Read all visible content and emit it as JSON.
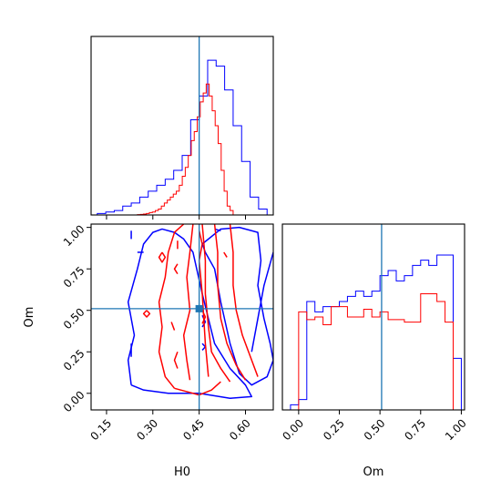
{
  "chart_data": {
    "type": "corner",
    "colors": {
      "series_a": "#0000ff",
      "series_b": "#ff0000",
      "truth": "#1f77b4"
    },
    "truth": {
      "H0": 0.45,
      "Om": 0.51
    },
    "axes": {
      "H0": {
        "label": "H0",
        "range": [
          0.1,
          0.69
        ],
        "ticks": [
          0.15,
          0.3,
          0.45,
          0.6
        ],
        "tick_labels": [
          "0.15",
          "0.30",
          "0.45",
          "0.60"
        ]
      },
      "Om": {
        "label": "Om",
        "range": [
          -0.1,
          1.02
        ],
        "ticks": [
          0.0,
          0.25,
          0.5,
          0.75,
          1.0
        ],
        "tick_labels": [
          "0.00",
          "0.25",
          "0.50",
          "0.75",
          "1.00"
        ]
      }
    },
    "panels": [
      {
        "id": "H0-marginal",
        "type": "step-histogram",
        "x": "H0",
        "bin_edges": [
          0.12,
          0.1475,
          0.175,
          0.2025,
          0.23,
          0.2575,
          0.285,
          0.3125,
          0.34,
          0.3675,
          0.395,
          0.4225,
          0.45,
          0.4775,
          0.505,
          0.5325,
          0.56,
          0.5875,
          0.615,
          0.6425,
          0.67
        ],
        "series": [
          {
            "color": "series_a",
            "counts": [
              0.5,
              1,
              1.5,
              3,
              4,
              6,
              8,
              10,
              12,
              15,
              20,
              32,
              40,
              52,
              50,
              42,
              30,
              18,
              6,
              2
            ]
          },
          {
            "color": "series_b",
            "counts_fine": [
              0.1,
              0.2,
              0.3,
              0.5,
              0.8,
              1,
              1.5,
              2,
              3,
              4,
              5,
              6,
              7,
              8,
              10,
              13,
              16,
              20,
              25,
              28,
              33,
              38,
              41,
              44,
              40,
              35,
              30,
              24,
              15,
              8,
              3,
              1.5
            ]
          }
        ],
        "fine_range": [
          0.25,
          0.56
        ],
        "ymax": 60
      },
      {
        "id": "H0-Om-contours",
        "type": "contour",
        "x": "H0",
        "y": "Om",
        "series": [
          {
            "color": "series_a",
            "lines": [
              [
                [
                  0.23,
                  0.05
                ],
                [
                  0.22,
                  0.2
                ],
                [
                  0.24,
                  0.35
                ],
                [
                  0.22,
                  0.55
                ],
                [
                  0.25,
                  0.75
                ],
                [
                  0.27,
                  0.9
                ],
                [
                  0.3,
                  0.97
                ],
                [
                  0.33,
                  0.99
                ],
                [
                  0.37,
                  0.97
                ],
                [
                  0.4,
                  0.93
                ],
                [
                  0.43,
                  0.85
                ],
                [
                  0.46,
                  0.6
                ],
                [
                  0.5,
                  0.3
                ],
                [
                  0.55,
                  0.15
                ],
                [
                  0.6,
                  0.05
                ],
                [
                  0.62,
                  -0.02
                ],
                [
                  0.55,
                  -0.03
                ],
                [
                  0.45,
                  0.0
                ],
                [
                  0.35,
                  0.0
                ],
                [
                  0.27,
                  0.02
                ],
                [
                  0.23,
                  0.05
                ]
              ],
              [
                [
                  0.46,
                  0.9
                ],
                [
                  0.52,
                  0.99
                ],
                [
                  0.58,
                  1.0
                ],
                [
                  0.64,
                  0.97
                ],
                [
                  0.65,
                  0.8
                ],
                [
                  0.64,
                  0.65
                ],
                [
                  0.66,
                  0.45
                ],
                [
                  0.68,
                  0.3
                ],
                [
                  0.69,
                  0.2
                ],
                [
                  0.67,
                  0.1
                ],
                [
                  0.62,
                  0.05
                ],
                [
                  0.58,
                  0.12
                ],
                [
                  0.55,
                  0.3
                ],
                [
                  0.52,
                  0.55
                ],
                [
                  0.5,
                  0.75
                ],
                [
                  0.47,
                  0.85
                ],
                [
                  0.46,
                  0.9
                ]
              ],
              [
                [
                  0.62,
                  0.25
                ],
                [
                  0.64,
                  0.45
                ],
                [
                  0.66,
                  0.65
                ],
                [
                  0.69,
                  0.85
                ]
              ],
              [
                [
                  0.23,
                  0.98
                ],
                [
                  0.23,
                  0.93
                ]
              ],
              [
                [
                  0.27,
                  0.85
                ],
                [
                  0.25,
                  0.85
                ]
              ],
              [
                [
                  0.23,
                  0.3
                ],
                [
                  0.23,
                  0.22
                ]
              ],
              [
                [
                  0.46,
                  0.47
                ],
                [
                  0.47,
                  0.43
                ],
                [
                  0.46,
                  0.4
                ]
              ],
              [
                [
                  0.46,
                  0.3
                ],
                [
                  0.47,
                  0.28
                ],
                [
                  0.46,
                  0.26
                ]
              ],
              [
                [
                  0.5,
                  0.99
                ],
                [
                  0.52,
                  0.98
                ]
              ]
            ]
          },
          {
            "color": "series_b",
            "lines": [
              [
                [
                  0.37,
                  0.03
                ],
                [
                  0.34,
                  0.1
                ],
                [
                  0.32,
                  0.25
                ],
                [
                  0.33,
                  0.4
                ],
                [
                  0.32,
                  0.55
                ],
                [
                  0.34,
                  0.7
                ],
                [
                  0.35,
                  0.85
                ],
                [
                  0.37,
                  0.97
                ],
                [
                  0.4,
                  1.02
                ]
              ],
              [
                [
                  0.37,
                  0.03
                ],
                [
                  0.41,
                  0.01
                ],
                [
                  0.45,
                  -0.01
                ],
                [
                  0.49,
                  0.02
                ],
                [
                  0.52,
                  0.07
                ]
              ],
              [
                [
                  0.43,
                  1.02
                ],
                [
                  0.42,
                  0.85
                ],
                [
                  0.41,
                  0.7
                ],
                [
                  0.42,
                  0.5
                ],
                [
                  0.4,
                  0.35
                ],
                [
                  0.41,
                  0.2
                ],
                [
                  0.42,
                  0.08
                ]
              ],
              [
                [
                  0.46,
                  1.02
                ],
                [
                  0.47,
                  0.8
                ],
                [
                  0.47,
                  0.6
                ],
                [
                  0.48,
                  0.4
                ],
                [
                  0.49,
                  0.25
                ],
                [
                  0.52,
                  0.15
                ],
                [
                  0.55,
                  0.07
                ]
              ],
              [
                [
                  0.5,
                  1.02
                ],
                [
                  0.51,
                  0.85
                ],
                [
                  0.51,
                  0.65
                ],
                [
                  0.52,
                  0.45
                ],
                [
                  0.54,
                  0.3
                ],
                [
                  0.57,
                  0.17
                ],
                [
                  0.6,
                  0.08
                ]
              ],
              [
                [
                  0.55,
                  1.02
                ],
                [
                  0.56,
                  0.85
                ],
                [
                  0.56,
                  0.65
                ],
                [
                  0.57,
                  0.5
                ],
                [
                  0.59,
                  0.35
                ],
                [
                  0.62,
                  0.2
                ],
                [
                  0.64,
                  0.1
                ]
              ],
              [
                [
                  0.45,
                  0.98
                ],
                [
                  0.46,
                  0.9
                ],
                [
                  0.45,
                  0.8
                ],
                [
                  0.46,
                  0.6
                ],
                [
                  0.47,
                  0.3
                ],
                [
                  0.48,
                  0.1
                ]
              ],
              [
                [
                  0.33,
                  0.85
                ],
                [
                  0.34,
                  0.82
                ],
                [
                  0.33,
                  0.79
                ],
                [
                  0.32,
                  0.82
                ],
                [
                  0.33,
                  0.85
                ]
              ],
              [
                [
                  0.28,
                  0.5
                ],
                [
                  0.29,
                  0.48
                ],
                [
                  0.28,
                  0.46
                ],
                [
                  0.27,
                  0.48
                ],
                [
                  0.28,
                  0.5
                ]
              ],
              [
                [
                  0.38,
                  0.92
                ],
                [
                  0.38,
                  0.87
                ]
              ],
              [
                [
                  0.38,
                  0.78
                ],
                [
                  0.37,
                  0.75
                ],
                [
                  0.38,
                  0.72
                ]
              ],
              [
                [
                  0.38,
                  0.25
                ],
                [
                  0.37,
                  0.2
                ],
                [
                  0.38,
                  0.15
                ]
              ],
              [
                [
                  0.36,
                  0.43
                ],
                [
                  0.37,
                  0.38
                ]
              ],
              [
                [
                  0.53,
                  0.85
                ],
                [
                  0.54,
                  0.82
                ]
              ],
              [
                [
                  0.46,
                  0.5
                ],
                [
                  0.47,
                  0.46
                ],
                [
                  0.46,
                  0.42
                ]
              ]
            ]
          }
        ]
      },
      {
        "id": "Om-marginal",
        "type": "step-histogram",
        "x": "Om",
        "bin_edges": [
          -0.05,
          0.0,
          0.05,
          0.1,
          0.15,
          0.2,
          0.25,
          0.3,
          0.35,
          0.4,
          0.45,
          0.5,
          0.55,
          0.6,
          0.65,
          0.7,
          0.75,
          0.8,
          0.85,
          0.9,
          0.95,
          1.0
        ],
        "series": [
          {
            "color": "series_a",
            "counts": [
              2,
              4,
              42,
              38,
              40,
              40,
              42,
              44,
              46,
              44,
              46,
              52,
              54,
              50,
              52,
              56,
              58,
              56,
              60,
              60,
              20
            ]
          },
          {
            "color": "series_b",
            "counts": [
              0,
              38,
              35,
              36,
              33,
              40,
              40,
              36,
              36,
              39,
              36,
              38,
              35,
              35,
              34,
              34,
              45,
              45,
              42,
              34,
              0
            ]
          }
        ],
        "ymax": 72
      }
    ]
  }
}
